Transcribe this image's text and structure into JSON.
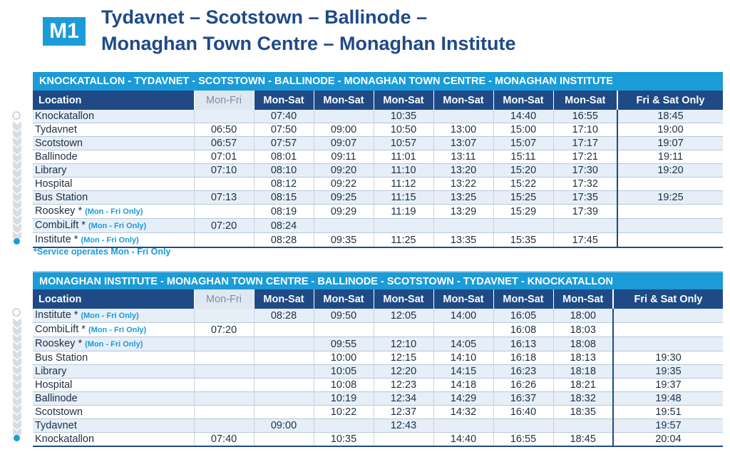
{
  "header": {
    "badge": "M1",
    "title_line1": "Tydavnet – Scotstown – Ballinode –",
    "title_line2": "Monaghan Town Centre – Monaghan Institute"
  },
  "outbound": {
    "route": "KNOCKATALLON - TYDAVNET - SCOTSTOWN - BALLINODE - MONAGHAN TOWN CENTRE - MONAGHAN INSTITUTE",
    "columns": [
      "Location",
      "Mon-Fri",
      "Mon-Sat",
      "Mon-Sat",
      "Mon-Sat",
      "Mon-Sat",
      "Mon-Sat",
      "Mon-Sat",
      "Fri & Sat Only"
    ],
    "rows": [
      {
        "stop": "Knockatallon",
        "note": "",
        "times": [
          "",
          "07:40",
          "",
          "10:35",
          "",
          "14:40",
          "16:55",
          "18:45"
        ]
      },
      {
        "stop": "Tydavnet",
        "note": "",
        "times": [
          "06:50",
          "07:50",
          "09:00",
          "10:50",
          "13:00",
          "15:00",
          "17:10",
          "19:00"
        ]
      },
      {
        "stop": "Scotstown",
        "note": "",
        "times": [
          "06:57",
          "07:57",
          "09:07",
          "10:57",
          "13:07",
          "15:07",
          "17:17",
          "19:07"
        ]
      },
      {
        "stop": "Ballinode",
        "note": "",
        "times": [
          "07:01",
          "08:01",
          "09:11",
          "11:01",
          "13:11",
          "15:11",
          "17:21",
          "19:11"
        ]
      },
      {
        "stop": "Library",
        "note": "",
        "times": [
          "07:10",
          "08:10",
          "09:20",
          "11:10",
          "13:20",
          "15:20",
          "17:30",
          "19:20"
        ]
      },
      {
        "stop": "Hospital",
        "note": "",
        "times": [
          "",
          "08:12",
          "09:22",
          "11:12",
          "13:22",
          "15:22",
          "17:32",
          ""
        ]
      },
      {
        "stop": "Bus Station",
        "note": "",
        "times": [
          "07:13",
          "08:15",
          "09:25",
          "11:15",
          "13:25",
          "15:25",
          "17:35",
          "19:25"
        ]
      },
      {
        "stop": "Rooskey *",
        "note": "(Mon - Fri Only)",
        "times": [
          "",
          "08:19",
          "09:29",
          "11:19",
          "13:29",
          "15:29",
          "17:39",
          ""
        ]
      },
      {
        "stop": "CombiLift *",
        "note": "(Mon - Fri Only)",
        "times": [
          "07:20",
          "08:24",
          "",
          "",
          "",
          "",
          "",
          ""
        ]
      },
      {
        "stop": "Institute *",
        "note": "(Mon - Fri Only)",
        "times": [
          "",
          "08:28",
          "09:35",
          "11:25",
          "13:35",
          "15:35",
          "17:45",
          ""
        ]
      }
    ]
  },
  "footnote": "*Service operates Mon - Fri Only",
  "inbound": {
    "route": "MONAGHAN INSTITUTE - MONAGHAN TOWN CENTRE - BALLINODE  - SCOTSTOWN - TYDAVNET - KNOCKATALLON",
    "columns": [
      "Location",
      "Mon-Fri",
      "Mon-Sat",
      "Mon-Sat",
      "Mon-Sat",
      "Mon-Sat",
      "Mon-Sat",
      "Mon-Sat",
      "Fri & Sat Only"
    ],
    "rows": [
      {
        "stop": "Institute *",
        "note": "(Mon - Fri Only)",
        "times": [
          "",
          "08:28",
          "09:50",
          "12:05",
          "14:00",
          "16:05",
          "18:00",
          ""
        ]
      },
      {
        "stop": "CombiLift *",
        "note": "(Mon - Fri Only)",
        "times": [
          "07:20",
          "",
          "",
          "",
          "",
          "16:08",
          "18:03",
          ""
        ]
      },
      {
        "stop": "Rooskey *",
        "note": "(Mon - Fri Only)",
        "times": [
          "",
          "",
          "09:55",
          "12:10",
          "14:05",
          "16:13",
          "18:08",
          ""
        ]
      },
      {
        "stop": "Bus Station",
        "note": "",
        "times": [
          "",
          "",
          "10:00",
          "12:15",
          "14:10",
          "16:18",
          "18:13",
          "19:30"
        ]
      },
      {
        "stop": "Library",
        "note": "",
        "times": [
          "",
          "",
          "10:05",
          "12:20",
          "14:15",
          "16:23",
          "18:18",
          "19:35"
        ]
      },
      {
        "stop": "Hospital",
        "note": "",
        "times": [
          "",
          "",
          "10:08",
          "12:23",
          "14:18",
          "16:26",
          "18:21",
          "19:37"
        ]
      },
      {
        "stop": "Ballinode",
        "note": "",
        "times": [
          "",
          "",
          "10:19",
          "12:34",
          "14:29",
          "16:37",
          "18:32",
          "19:48"
        ]
      },
      {
        "stop": "Scotstown",
        "note": "",
        "times": [
          "",
          "",
          "10:22",
          "12:37",
          "14:32",
          "16:40",
          "18:35",
          "19:51"
        ]
      },
      {
        "stop": "Tydavnet",
        "note": "",
        "times": [
          "",
          "09:00",
          "",
          "12:43",
          "",
          "",
          "",
          "19:57"
        ]
      },
      {
        "stop": "Knockatallon",
        "note": "",
        "times": [
          "07:40",
          "",
          "10:35",
          "",
          "14:40",
          "16:55",
          "18:45",
          "20:04"
        ]
      }
    ]
  }
}
